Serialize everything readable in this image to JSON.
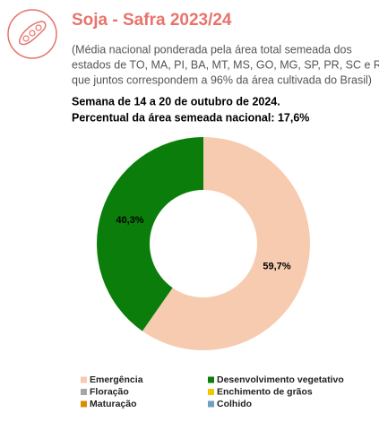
{
  "header": {
    "title": "Soja - Safra 2023/24",
    "subtitle_lines": [
      "(Média nacional ponderada pela área total semeada dos",
      "estados de TO, MA, PI, BA, MT, MS, GO, MG, SP, PR, SC e RS,",
      "que juntos correspondem a 96% da área cultivada do Brasil)"
    ],
    "week": "Semana de 14 a 20 de outubro de 2024.",
    "percent": "Percentual da área semeada nacional: 17,6%"
  },
  "chart_data": {
    "type": "donut",
    "categories": [
      "Emergência",
      "Desenvolvimento vegetativo",
      "Floração",
      "Enchimento de grãos",
      "Maturação",
      "Colhido"
    ],
    "values": [
      59.7,
      40.3,
      0,
      0,
      0,
      0
    ],
    "value_labels": [
      "59,7%",
      "40,3%",
      null,
      null,
      null,
      null
    ],
    "colors": [
      "#f7cbb0",
      "#0b7d0b",
      "#a6a6a6",
      "#f0c800",
      "#d98c00",
      "#6f9fbf"
    ]
  }
}
